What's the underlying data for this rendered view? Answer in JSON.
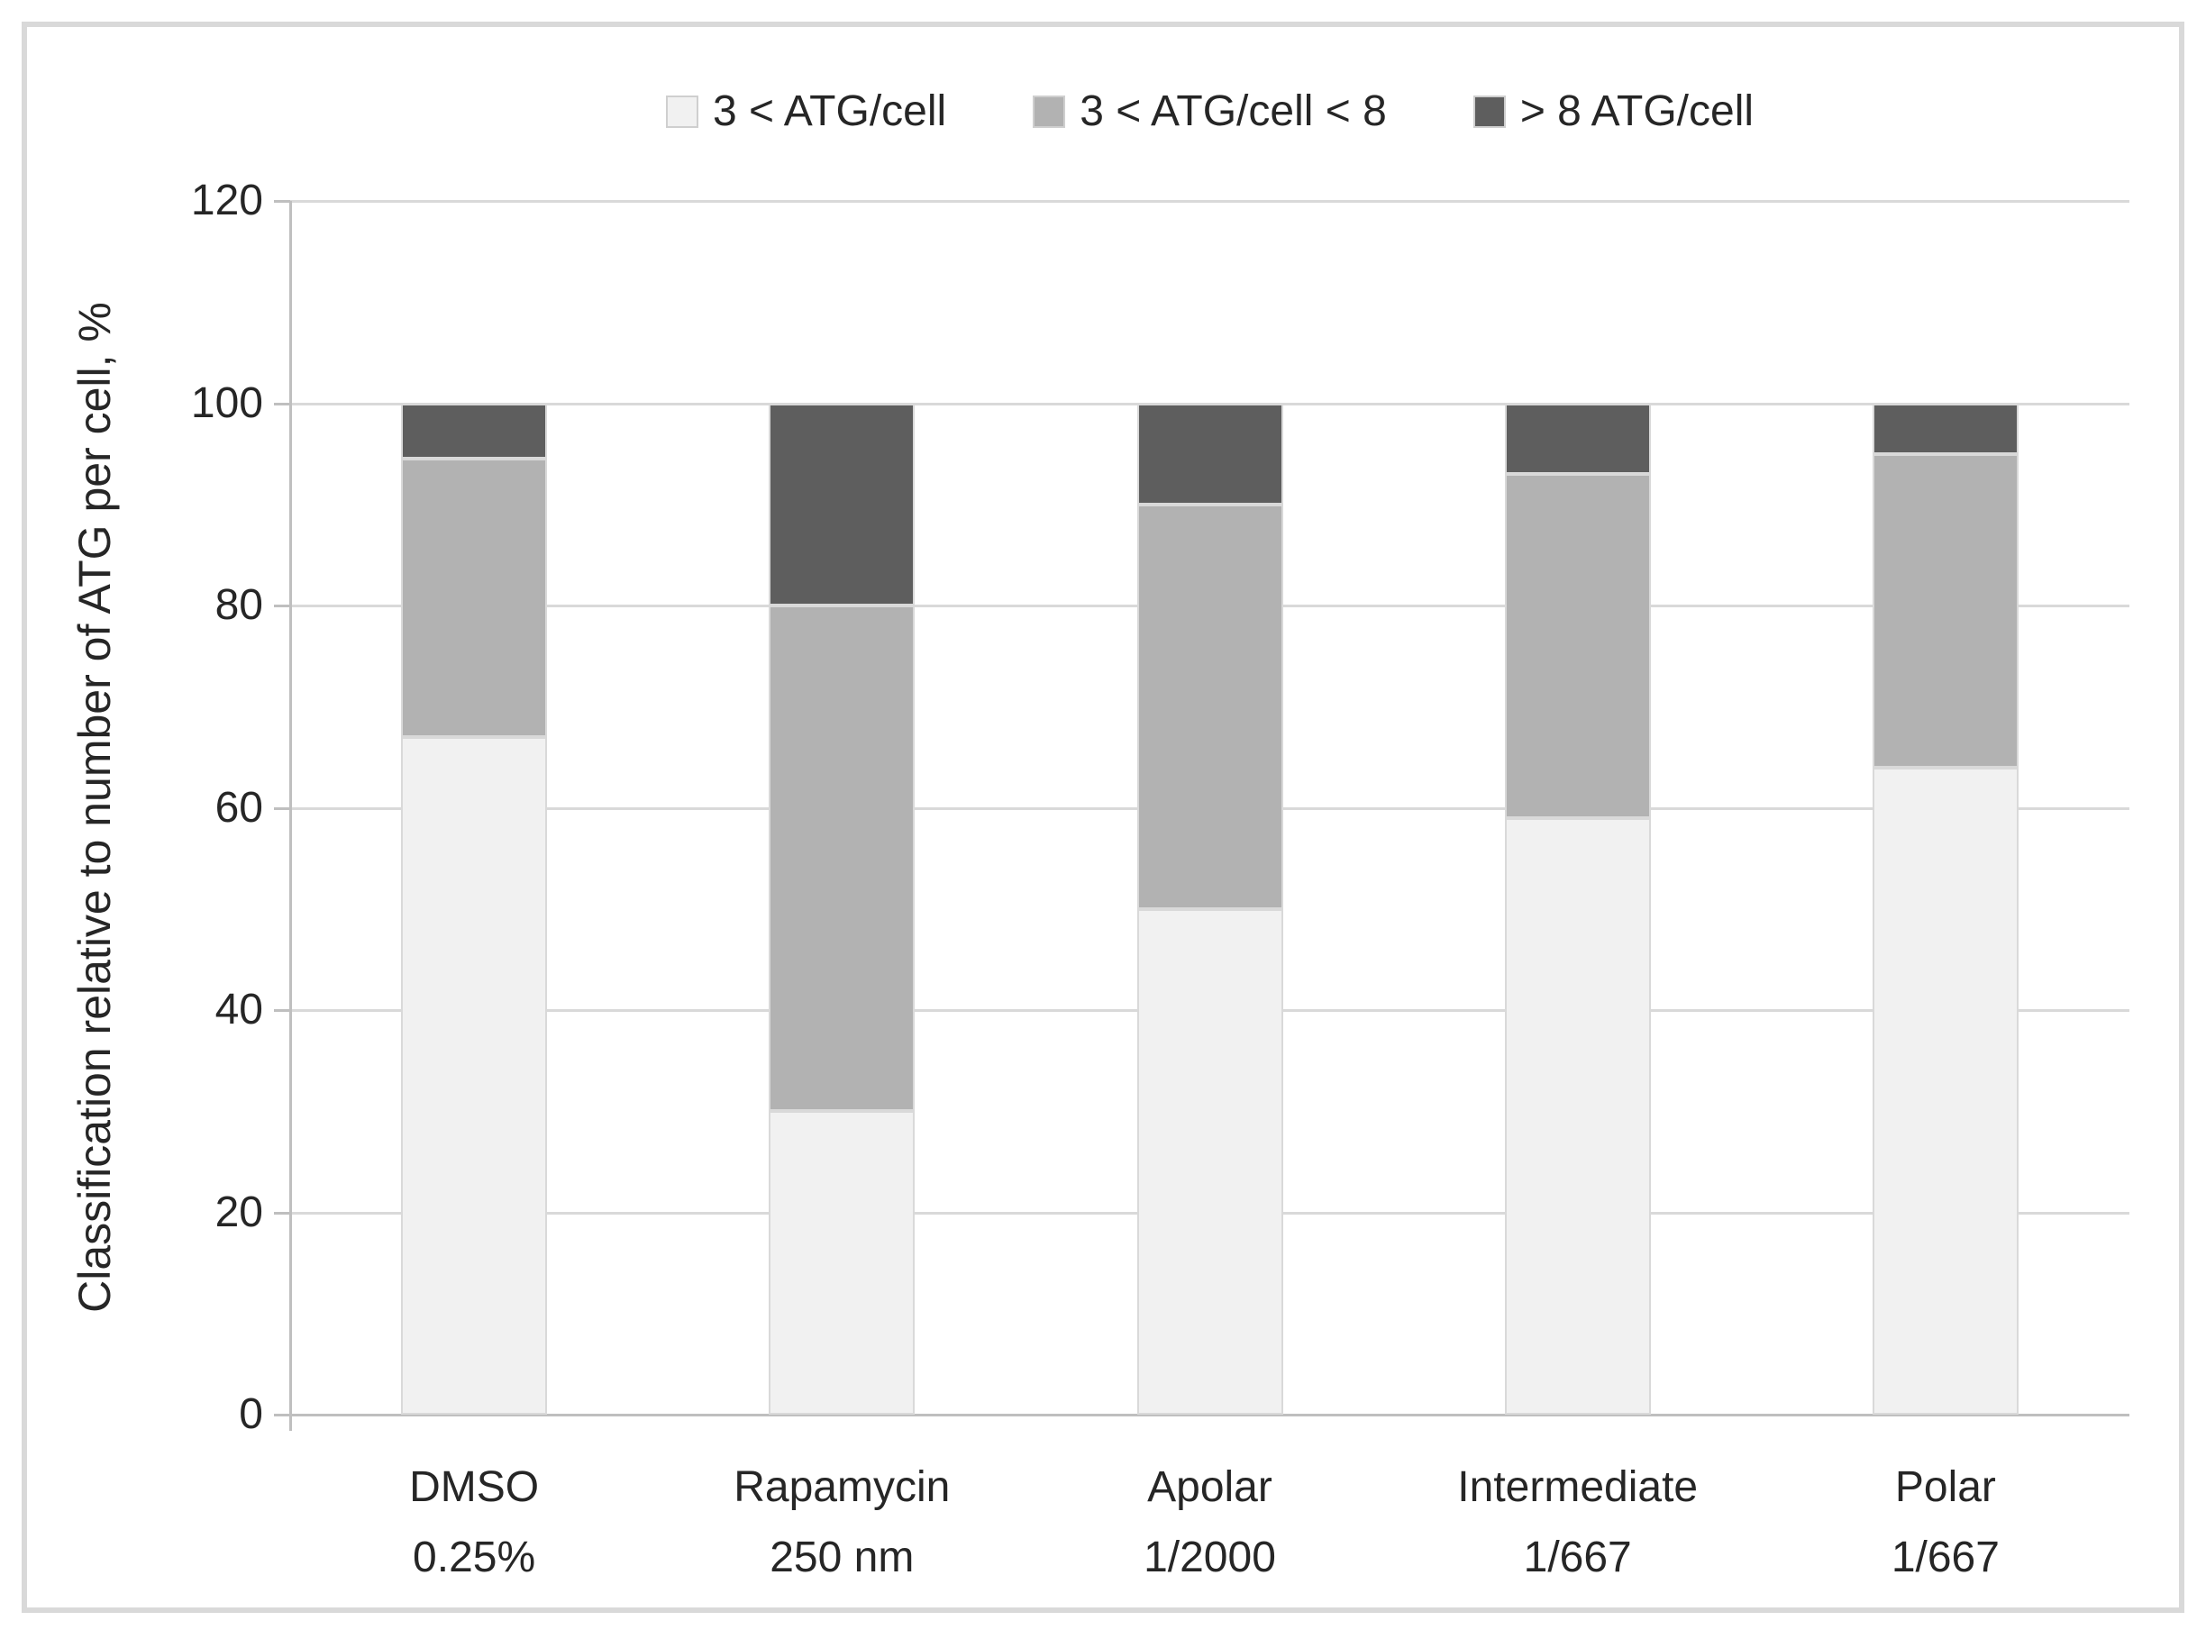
{
  "chart_data": {
    "type": "bar",
    "stacked": true,
    "title": "",
    "xlabel": "",
    "ylabel": "Classification relative to number of ATG per cell, %",
    "ylim": [
      0,
      120
    ],
    "yticks": [
      0,
      20,
      40,
      60,
      80,
      100,
      120
    ],
    "grid": "horizontal",
    "legend_position": "top-center",
    "categories": [
      {
        "label": "DMSO",
        "sublabel": "0.25%"
      },
      {
        "label": "Rapamycin",
        "sublabel": "250 nm"
      },
      {
        "label": "Apolar",
        "sublabel": "1/2000"
      },
      {
        "label": "Intermediate",
        "sublabel": "1/667"
      },
      {
        "label": "Polar",
        "sublabel": "1/667"
      }
    ],
    "series": [
      {
        "name": "3 < ATG/cell",
        "color": "#f1f1f1",
        "values": [
          67,
          30,
          50,
          59,
          64
        ]
      },
      {
        "name": "3 < ATG/cell < 8",
        "color": "#b2b2b2",
        "values": [
          27.5,
          50,
          40,
          34,
          31
        ]
      },
      {
        "name": "> 8 ATG/cell",
        "color": "#5e5e5e",
        "values": [
          5.5,
          20,
          10,
          7,
          5
        ]
      }
    ]
  },
  "colors": {
    "background": "#ffffff",
    "frame_border": "#d9d9d9",
    "gridline": "#d9d9d9",
    "zero_line": "#bfbfbf",
    "axis_line": "#bfbfbf",
    "segment_border": "#d9d9d9",
    "text": "#262626"
  }
}
